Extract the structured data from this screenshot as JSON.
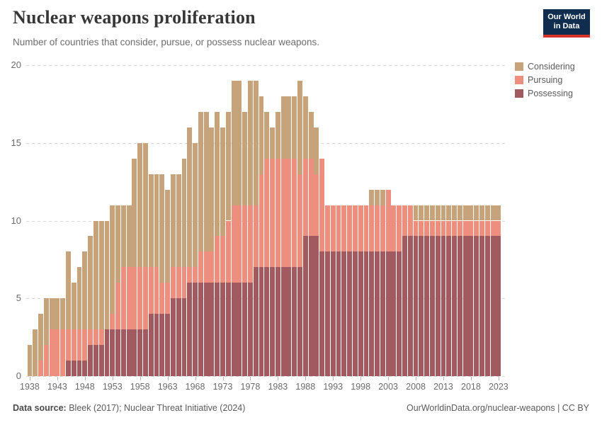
{
  "header": {
    "title": "Nuclear weapons proliferation",
    "subtitle": "Number of countries that consider, pursue, or possess nuclear weapons.",
    "logo": {
      "line1": "Our World",
      "line2": "in Data",
      "bg_color": "#102D4F",
      "stripe_color": "#D8352A"
    }
  },
  "legend": [
    {
      "label": "Considering",
      "color": "#C7A37C"
    },
    {
      "label": "Pursuing",
      "color": "#EE8E7E"
    },
    {
      "label": "Possessing",
      "color": "#A05A60"
    }
  ],
  "chart_data": {
    "type": "bar",
    "stacked": true,
    "title": "Nuclear weapons proliferation",
    "subtitle": "Number of countries that consider, pursue, or possess nuclear weapons.",
    "xlabel": "",
    "ylabel": "",
    "ylim": [
      0,
      20
    ],
    "yticks": [
      0,
      5,
      10,
      15,
      20
    ],
    "grid": "dashed-horizontal",
    "legend_position": "right",
    "x_start": 1938,
    "x_end": 2023,
    "xticks": [
      1938,
      1943,
      1948,
      1953,
      1958,
      1963,
      1968,
      1973,
      1978,
      1983,
      1988,
      1993,
      1998,
      2003,
      2008,
      2013,
      2018,
      2023
    ],
    "stack_order_bottom_to_top": [
      "Possessing",
      "Pursuing",
      "Considering"
    ],
    "series": [
      {
        "name": "Considering",
        "color": "#C7A37C",
        "values": [
          2,
          3,
          3,
          3,
          2,
          2,
          2,
          5,
          3,
          4,
          5,
          6,
          7,
          7,
          7,
          7,
          5,
          4,
          4,
          7,
          8,
          8,
          6,
          6,
          7,
          6,
          6,
          6,
          7,
          9,
          8,
          9,
          9,
          8,
          8,
          7,
          7,
          8,
          8,
          6,
          8,
          8,
          5,
          3,
          2,
          3,
          4,
          4,
          4,
          6,
          4,
          3,
          3,
          0,
          0,
          0,
          0,
          0,
          0,
          0,
          0,
          0,
          1,
          1,
          1,
          0,
          0,
          0,
          0,
          0,
          1,
          1,
          1,
          1,
          1,
          1,
          1,
          1,
          1,
          1,
          1,
          1,
          1,
          1,
          1,
          1
        ]
      },
      {
        "name": "Pursuing",
        "color": "#EE8E7E",
        "values": [
          0,
          0,
          1,
          2,
          3,
          3,
          3,
          2,
          2,
          2,
          2,
          1,
          1,
          1,
          0,
          1,
          3,
          4,
          4,
          4,
          4,
          4,
          3,
          3,
          2,
          2,
          2,
          2,
          2,
          1,
          1,
          2,
          2,
          2,
          3,
          3,
          4,
          5,
          5,
          5,
          5,
          4,
          6,
          7,
          7,
          7,
          7,
          7,
          7,
          6,
          5,
          5,
          4,
          6,
          3,
          3,
          3,
          3,
          3,
          3,
          3,
          3,
          3,
          3,
          3,
          4,
          3,
          3,
          2,
          2,
          1,
          1,
          1,
          1,
          1,
          1,
          1,
          1,
          1,
          1,
          1,
          1,
          1,
          1,
          1,
          1
        ]
      },
      {
        "name": "Possessing",
        "color": "#A05A60",
        "values": [
          0,
          0,
          0,
          0,
          0,
          0,
          0,
          1,
          1,
          1,
          1,
          2,
          2,
          2,
          3,
          3,
          3,
          3,
          3,
          3,
          3,
          3,
          4,
          4,
          4,
          4,
          5,
          5,
          5,
          6,
          6,
          6,
          6,
          6,
          6,
          6,
          6,
          6,
          6,
          6,
          6,
          7,
          7,
          7,
          7,
          7,
          7,
          7,
          7,
          7,
          9,
          9,
          9,
          8,
          8,
          8,
          8,
          8,
          8,
          8,
          8,
          8,
          8,
          8,
          8,
          8,
          8,
          8,
          9,
          9,
          9,
          9,
          9,
          9,
          9,
          9,
          9,
          9,
          9,
          9,
          9,
          9,
          9,
          9,
          9,
          9
        ]
      }
    ]
  },
  "footer": {
    "source_label": "Data source:",
    "source_text": " Bleek (2017); Nuclear Threat Initiative (2024)",
    "url_text": "OurWorldinData.org/nuclear-weapons | CC BY"
  }
}
